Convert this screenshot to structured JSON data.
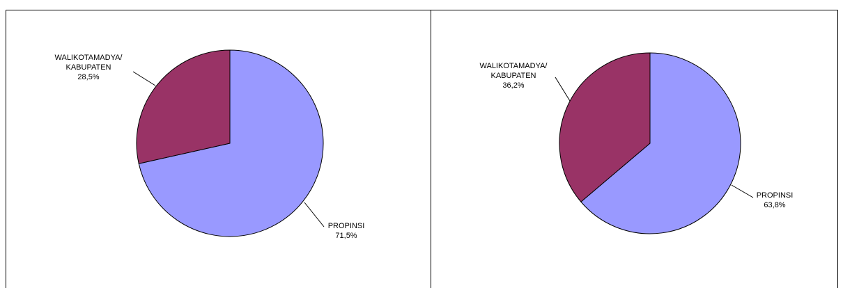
{
  "chart_data": [
    {
      "type": "pie",
      "categories": [
        "PROPINSI",
        "WALIKOTAMADYA/\nKABUPATEN"
      ],
      "values": [
        71.5,
        28.5
      ],
      "value_labels": [
        "71,5%",
        "28,5%"
      ],
      "colors": [
        "#9999ff",
        "#993366"
      ]
    },
    {
      "type": "pie",
      "categories": [
        "PROPINSI",
        "WALIKOTAMADYA/\nKABUPATEN"
      ],
      "values": [
        63.8,
        36.2
      ],
      "value_labels": [
        "63,8%",
        "36,2%"
      ],
      "colors": [
        "#9999ff",
        "#993366"
      ]
    }
  ]
}
